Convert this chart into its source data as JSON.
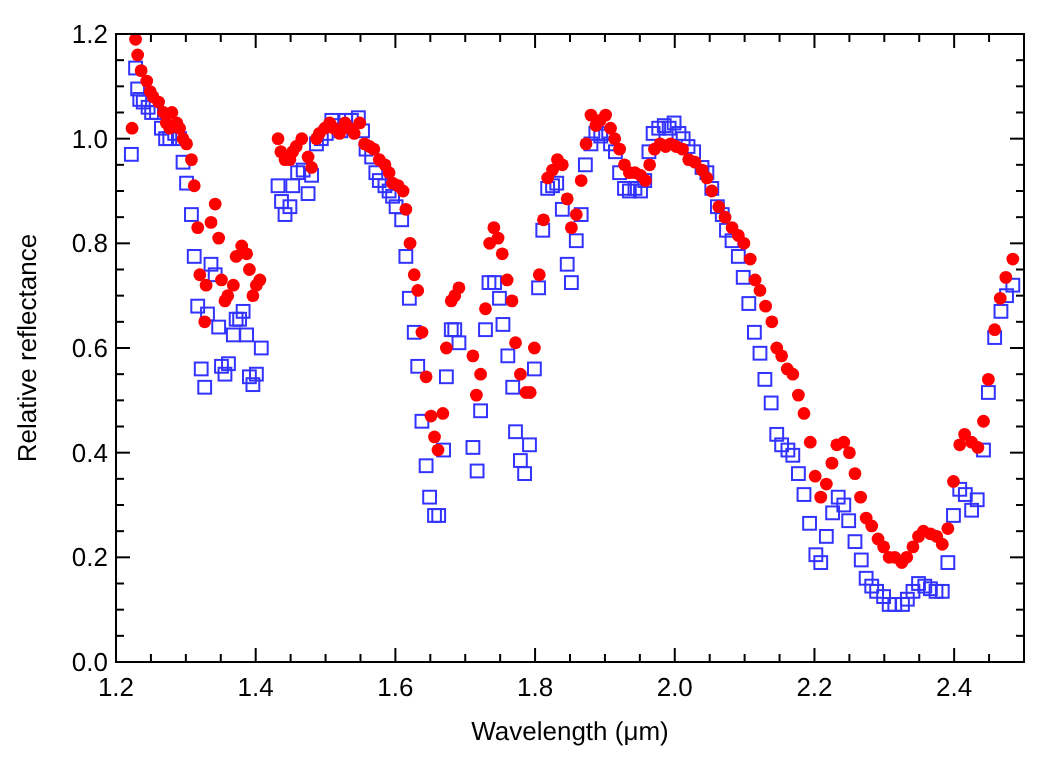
{
  "chart_data": {
    "type": "scatter",
    "xlabel": "Wavelength (μm)",
    "ylabel": "Relative reflectance",
    "xlim": [
      1.2,
      2.5
    ],
    "ylim": [
      0,
      1.2
    ],
    "xticks": [
      {
        "value": 1.2,
        "label": "1.2"
      },
      {
        "value": 1.25,
        "label": null
      },
      {
        "value": 1.3,
        "label": null
      },
      {
        "value": 1.35,
        "label": null
      },
      {
        "value": 1.4,
        "label": "1.4"
      },
      {
        "value": 1.45,
        "label": null
      },
      {
        "value": 1.5,
        "label": null
      },
      {
        "value": 1.55,
        "label": null
      },
      {
        "value": 1.6,
        "label": "1.6"
      },
      {
        "value": 1.65,
        "label": null
      },
      {
        "value": 1.7,
        "label": null
      },
      {
        "value": 1.75,
        "label": null
      },
      {
        "value": 1.8,
        "label": "1.8"
      },
      {
        "value": 1.85,
        "label": null
      },
      {
        "value": 1.9,
        "label": null
      },
      {
        "value": 1.95,
        "label": null
      },
      {
        "value": 2.0,
        "label": "2.0"
      },
      {
        "value": 2.05,
        "label": null
      },
      {
        "value": 2.1,
        "label": null
      },
      {
        "value": 2.15,
        "label": null
      },
      {
        "value": 2.2,
        "label": "2.2"
      },
      {
        "value": 2.25,
        "label": null
      },
      {
        "value": 2.3,
        "label": null
      },
      {
        "value": 2.35,
        "label": null
      },
      {
        "value": 2.4,
        "label": "2.4"
      },
      {
        "value": 2.45,
        "label": null
      }
    ],
    "yticks": [
      {
        "value": 0,
        "label": "0.0"
      },
      {
        "value": 0.05,
        "label": null
      },
      {
        "value": 0.1,
        "label": null
      },
      {
        "value": 0.15,
        "label": null
      },
      {
        "value": 0.2,
        "label": "0.2"
      },
      {
        "value": 0.25,
        "label": null
      },
      {
        "value": 0.3,
        "label": null
      },
      {
        "value": 0.35,
        "label": null
      },
      {
        "value": 0.4,
        "label": "0.4"
      },
      {
        "value": 0.45,
        "label": null
      },
      {
        "value": 0.5,
        "label": null
      },
      {
        "value": 0.55,
        "label": null
      },
      {
        "value": 0.6,
        "label": "0.6"
      },
      {
        "value": 0.65,
        "label": null
      },
      {
        "value": 0.7,
        "label": null
      },
      {
        "value": 0.75,
        "label": null
      },
      {
        "value": 0.8,
        "label": "0.8"
      },
      {
        "value": 0.85,
        "label": null
      },
      {
        "value": 0.9,
        "label": null
      },
      {
        "value": 0.95,
        "label": null
      },
      {
        "value": 1.0,
        "label": "1.0"
      },
      {
        "value": 1.05,
        "label": null
      },
      {
        "value": 1.1,
        "label": null
      },
      {
        "value": 1.15,
        "label": null
      },
      {
        "value": 1.2,
        "label": "1.2"
      }
    ],
    "series": [
      {
        "color": "#3333ff",
        "marker": "square",
        "x": [
          1.222,
          1.228,
          1.231,
          1.234,
          1.239,
          1.246,
          1.251,
          1.258,
          1.265,
          1.271,
          1.277,
          1.284,
          1.291,
          1.296,
          1.301,
          1.308,
          1.312,
          1.317,
          1.322,
          1.327,
          1.331,
          1.336,
          1.342,
          1.347,
          1.351,
          1.356,
          1.361,
          1.368,
          1.372,
          1.377,
          1.382,
          1.387,
          1.391,
          1.396,
          1.401,
          1.408,
          1.432,
          1.437,
          1.442,
          1.449,
          1.453,
          1.46,
          1.468,
          1.475,
          1.48,
          1.487,
          1.494,
          1.501,
          1.509,
          1.515,
          1.522,
          1.529,
          1.537,
          1.547,
          1.553,
          1.558,
          1.566,
          1.572,
          1.577,
          1.585,
          1.591,
          1.596,
          1.601,
          1.609,
          1.615,
          1.62,
          1.627,
          1.632,
          1.638,
          1.644,
          1.649,
          1.656,
          1.662,
          1.669,
          1.673,
          1.68,
          1.685,
          1.691,
          1.711,
          1.717,
          1.722,
          1.729,
          1.734,
          1.742,
          1.749,
          1.754,
          1.761,
          1.768,
          1.772,
          1.779,
          1.785,
          1.792,
          1.799,
          1.805,
          1.811,
          1.818,
          1.825,
          1.831,
          1.839,
          1.846,
          1.852,
          1.859,
          1.866,
          1.872,
          1.88,
          1.887,
          1.894,
          1.901,
          1.908,
          1.915,
          1.921,
          1.928,
          1.935,
          1.943,
          1.951,
          1.957,
          1.963,
          1.969,
          1.977,
          1.985,
          1.992,
          1.999,
          2.006,
          2.012,
          2.019,
          2.027,
          2.039,
          2.046,
          2.053,
          2.061,
          2.068,
          2.074,
          2.082,
          2.091,
          2.098,
          2.106,
          2.114,
          2.122,
          2.129,
          2.138,
          2.146,
          2.153,
          2.162,
          2.169,
          2.177,
          2.185,
          2.193,
          2.202,
          2.209,
          2.217,
          2.226,
          2.234,
          2.242,
          2.249,
          2.258,
          2.267,
          2.274,
          2.282,
          2.289,
          2.299,
          2.307,
          2.315,
          2.326,
          2.333,
          2.341,
          2.349,
          2.358,
          2.366,
          2.374,
          2.383,
          2.391,
          2.399,
          2.408,
          2.416,
          2.425,
          2.433,
          2.442,
          2.449,
          2.458,
          2.467,
          2.475,
          2.484
        ],
        "values": [
          0.97,
          1.135,
          1.095,
          1.075,
          1.07,
          1.06,
          1.05,
          1.05,
          1.02,
          1.0,
          1.0,
          1.01,
          1.0,
          0.955,
          0.915,
          0.855,
          0.775,
          0.68,
          0.56,
          0.525,
          0.665,
          0.76,
          0.74,
          0.64,
          0.565,
          0.55,
          0.57,
          0.625,
          0.655,
          0.655,
          0.67,
          0.625,
          0.545,
          0.53,
          0.55,
          0.6,
          0.91,
          0.88,
          0.855,
          0.87,
          0.91,
          0.935,
          0.94,
          0.895,
          0.93,
          0.99,
          1.0,
          1.01,
          1.035,
          1.025,
          1.015,
          1.035,
          1.035,
          1.04,
          1.015,
          0.98,
          0.965,
          0.935,
          0.92,
          0.91,
          0.9,
          0.89,
          0.87,
          0.845,
          0.775,
          0.695,
          0.63,
          0.565,
          0.46,
          0.375,
          0.315,
          0.28,
          0.28,
          0.405,
          0.545,
          0.635,
          0.635,
          0.61,
          0.41,
          0.365,
          0.48,
          0.635,
          0.725,
          0.725,
          0.695,
          0.645,
          0.585,
          0.525,
          0.44,
          0.385,
          0.36,
          0.415,
          0.56,
          0.715,
          0.825,
          0.905,
          0.91,
          0.915,
          0.865,
          0.76,
          0.725,
          0.805,
          0.855,
          0.95,
          0.99,
          1.01,
          1.005,
          1.01,
          0.99,
          0.975,
          0.935,
          0.905,
          0.9,
          0.905,
          0.9,
          0.92,
          0.975,
          1.01,
          1.02,
          1.025,
          1.02,
          1.03,
          1.01,
          1.0,
          0.985,
          0.975,
          0.945,
          0.935,
          0.905,
          0.87,
          0.855,
          0.825,
          0.805,
          0.775,
          0.735,
          0.685,
          0.63,
          0.59,
          0.54,
          0.495,
          0.435,
          0.415,
          0.405,
          0.395,
          0.36,
          0.32,
          0.265,
          0.205,
          0.19,
          0.24,
          0.285,
          0.315,
          0.3,
          0.27,
          0.23,
          0.195,
          0.16,
          0.145,
          0.135,
          0.125,
          0.11,
          0.11,
          0.11,
          0.12,
          0.135,
          0.15,
          0.145,
          0.14,
          0.135,
          0.135,
          0.19,
          0.28,
          0.33,
          0.32,
          0.29,
          0.31,
          0.405,
          0.515,
          0.62,
          0.67,
          0.7,
          0.72
        ]
      },
      {
        "color": "#ff0000",
        "marker": "circle",
        "x": [
          1.223,
          1.228,
          1.231,
          1.236,
          1.244,
          1.249,
          1.253,
          1.261,
          1.268,
          1.272,
          1.28,
          1.277,
          1.287,
          1.291,
          1.296,
          1.301,
          1.308,
          1.312,
          1.317,
          1.336,
          1.342,
          1.347,
          1.32,
          1.329,
          1.327,
          1.351,
          1.356,
          1.36,
          1.368,
          1.372,
          1.38,
          1.387,
          1.391,
          1.396,
          1.401,
          1.406,
          1.432,
          1.436,
          1.442,
          1.449,
          1.453,
          1.458,
          1.466,
          1.475,
          1.48,
          1.487,
          1.491,
          1.499,
          1.506,
          1.512,
          1.52,
          1.528,
          1.534,
          1.541,
          1.549,
          1.556,
          1.563,
          1.569,
          1.577,
          1.585,
          1.591,
          1.596,
          1.604,
          1.611,
          1.615,
          1.621,
          1.627,
          1.632,
          1.638,
          1.644,
          1.651,
          1.656,
          1.661,
          1.668,
          1.673,
          1.68,
          1.685,
          1.691,
          1.711,
          1.716,
          1.722,
          1.729,
          1.735,
          1.741,
          1.747,
          1.753,
          1.76,
          1.767,
          1.772,
          1.779,
          1.787,
          1.793,
          1.799,
          1.806,
          1.812,
          1.818,
          1.825,
          1.832,
          1.839,
          1.846,
          1.852,
          1.859,
          1.866,
          1.873,
          1.88,
          1.887,
          1.893,
          1.901,
          1.908,
          1.914,
          1.921,
          1.928,
          1.935,
          1.943,
          1.951,
          1.958,
          1.964,
          1.971,
          1.979,
          1.987,
          1.994,
          2.002,
          2.011,
          2.02,
          2.029,
          2.039,
          2.046,
          2.053,
          2.063,
          2.072,
          2.082,
          2.091,
          2.099,
          2.108,
          2.115,
          2.122,
          2.13,
          2.139,
          2.146,
          2.153,
          2.161,
          2.169,
          2.177,
          2.185,
          2.194,
          2.201,
          2.209,
          2.217,
          2.225,
          2.232,
          2.242,
          2.25,
          2.258,
          2.266,
          2.274,
          2.282,
          2.291,
          2.299,
          2.307,
          2.315,
          2.325,
          2.332,
          2.341,
          2.349,
          2.356,
          2.366,
          2.375,
          2.383,
          2.391,
          2.399,
          2.408,
          2.415,
          2.425,
          2.434,
          2.442,
          2.449,
          2.458,
          2.466,
          2.474,
          2.484
        ],
        "values": [
          1.02,
          1.19,
          1.16,
          1.13,
          1.11,
          1.09,
          1.08,
          1.07,
          1.05,
          1.03,
          1.05,
          1.02,
          1.03,
          1.02,
          1.0,
          0.99,
          0.96,
          0.91,
          0.83,
          0.84,
          0.875,
          0.81,
          0.74,
          0.72,
          0.65,
          0.73,
          0.69,
          0.7,
          0.72,
          0.775,
          0.795,
          0.78,
          0.75,
          0.7,
          0.72,
          0.73,
          1.0,
          0.975,
          0.96,
          0.96,
          0.975,
          0.985,
          1.0,
          0.965,
          0.945,
          1.0,
          1.01,
          1.02,
          1.03,
          1.02,
          1.01,
          1.03,
          1.02,
          1.01,
          1.03,
          0.99,
          0.985,
          0.98,
          0.96,
          0.95,
          0.935,
          0.915,
          0.91,
          0.9,
          0.865,
          0.8,
          0.74,
          0.71,
          0.63,
          0.545,
          0.47,
          0.43,
          0.405,
          0.475,
          0.6,
          0.69,
          0.7,
          0.715,
          0.585,
          0.51,
          0.55,
          0.675,
          0.8,
          0.83,
          0.81,
          0.78,
          0.73,
          0.69,
          0.61,
          0.55,
          0.515,
          0.515,
          0.6,
          0.74,
          0.845,
          0.925,
          0.94,
          0.96,
          0.95,
          0.885,
          0.83,
          0.855,
          0.92,
          0.99,
          1.045,
          1.025,
          1.035,
          1.045,
          1.02,
          1.0,
          0.98,
          0.95,
          0.935,
          0.935,
          0.93,
          0.92,
          0.95,
          0.98,
          0.99,
          0.985,
          0.99,
          0.985,
          0.98,
          0.96,
          0.955,
          0.94,
          0.925,
          0.9,
          0.87,
          0.85,
          0.83,
          0.815,
          0.8,
          0.77,
          0.73,
          0.71,
          0.68,
          0.65,
          0.6,
          0.585,
          0.56,
          0.55,
          0.51,
          0.475,
          0.42,
          0.355,
          0.315,
          0.34,
          0.38,
          0.415,
          0.42,
          0.4,
          0.36,
          0.315,
          0.275,
          0.26,
          0.235,
          0.22,
          0.2,
          0.2,
          0.19,
          0.2,
          0.22,
          0.24,
          0.25,
          0.245,
          0.24,
          0.225,
          0.255,
          0.345,
          0.415,
          0.435,
          0.42,
          0.41,
          0.46,
          0.54,
          0.635,
          0.695,
          0.735,
          0.77
        ]
      }
    ]
  }
}
